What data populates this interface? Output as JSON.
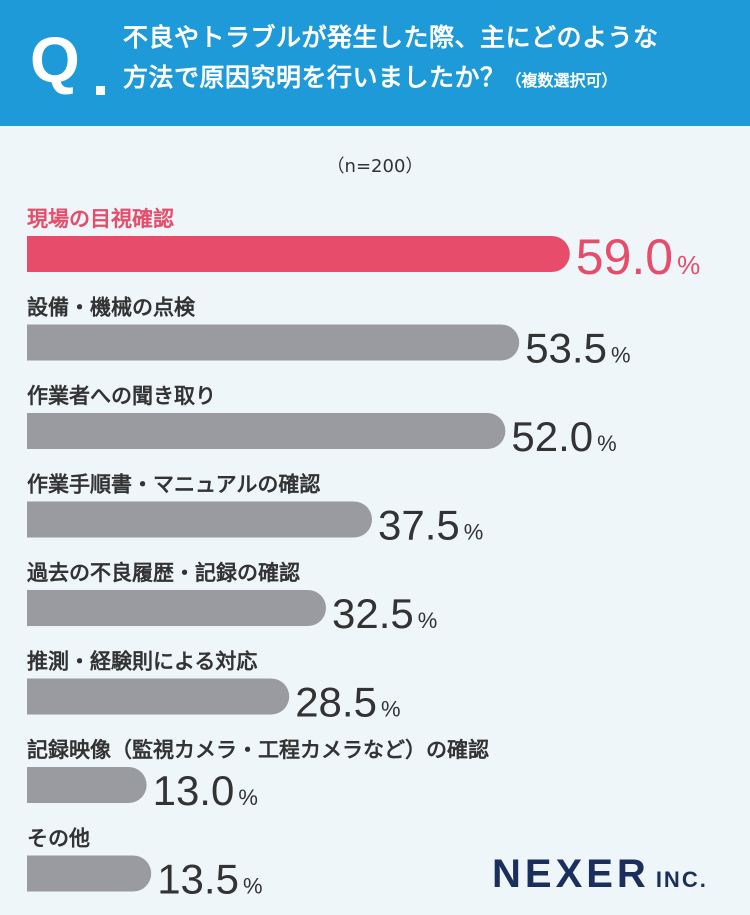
{
  "question": {
    "mark": "Q",
    "line1": "不良やトラブルが発生した際、主にどのような",
    "line2": "方法で原因究明を行いましたか？",
    "note": "（複数選択可）"
  },
  "sample": "（n=200）",
  "colors": {
    "header": "#1f9ad8",
    "highlight": "#e84c6b",
    "bar": "#9a9ba0",
    "background": "#eff6fa"
  },
  "chart_data": {
    "type": "bar",
    "orientation": "horizontal",
    "unit": "%",
    "categories": [
      "現場の目視確認",
      "設備・機械の点検",
      "作業者への聞き取り",
      "作業手順書・マニュアルの確認",
      "過去の不良履歴・記録の確認",
      "推測・経験則による対応",
      "記録映像（監視カメラ・工程カメラなど）の確認",
      "その他"
    ],
    "values": [
      59.0,
      53.5,
      52.0,
      37.5,
      32.5,
      28.5,
      13.0,
      13.5
    ],
    "value_labels": [
      "59.0",
      "53.5",
      "52.0",
      "37.5",
      "32.5",
      "28.5",
      "13.0",
      "13.5"
    ],
    "highlight_index": 0
  },
  "logo": {
    "main": "NEXER",
    "sub": "INC."
  }
}
